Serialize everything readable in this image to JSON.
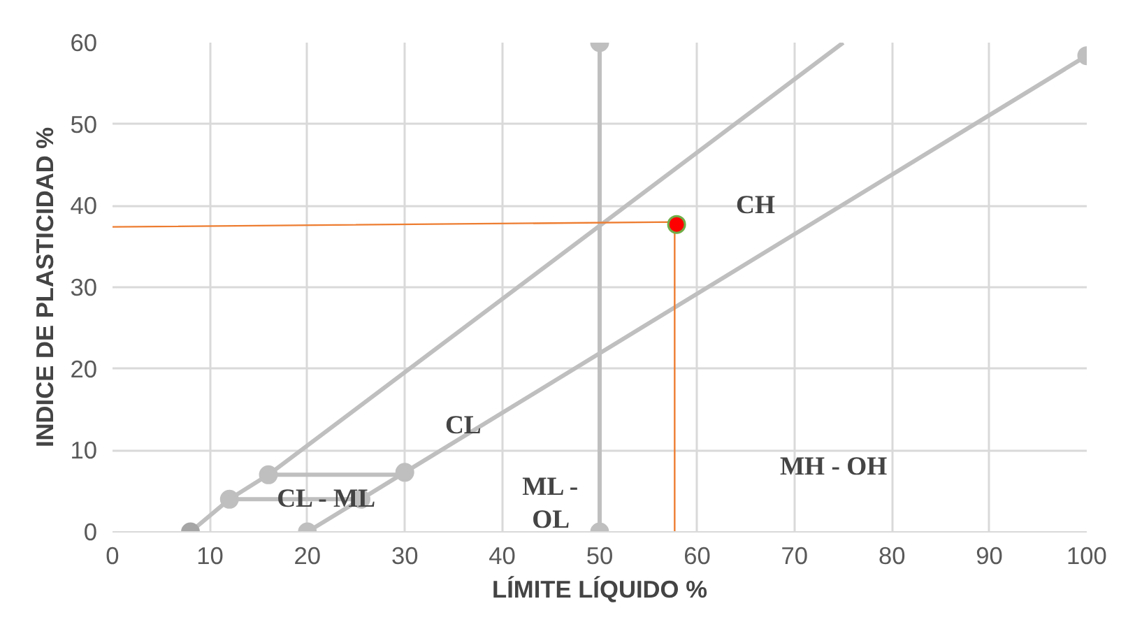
{
  "chart_data": {
    "type": "line",
    "xlabel": "LÍMITE LÍQUIDO %",
    "ylabel": "INDICE DE PLASTICIDAD %",
    "xlim": [
      0,
      100
    ],
    "ylim": [
      0,
      60
    ],
    "xticks": [
      0,
      10,
      20,
      30,
      40,
      50,
      60,
      70,
      80,
      90,
      100
    ],
    "yticks": [
      0,
      10,
      20,
      30,
      40,
      50,
      60
    ],
    "grid": true,
    "line_style": "solid",
    "series": [
      {
        "marker": "none",
        "color": "#bfbfbf",
        "x": [
          8,
          12,
          16,
          75
        ],
        "values": [
          0,
          4,
          7,
          60
        ]
      },
      {
        "marker": "none",
        "color": "#bfbfbf",
        "x": [
          20,
          25.5,
          30,
          100
        ],
        "values": [
          0,
          4,
          7.3,
          58.4
        ]
      },
      {
        "marker": "none",
        "color": "#bfbfbf",
        "x": [
          12,
          25.5
        ],
        "values": [
          4,
          4
        ]
      },
      {
        "marker": "none",
        "color": "#bfbfbf",
        "x": [
          16,
          30
        ],
        "values": [
          7,
          7
        ]
      },
      {
        "marker": "none",
        "color": "#bfbfbf",
        "x": [
          50,
          50
        ],
        "values": [
          0,
          60
        ]
      },
      {
        "type": "scatter",
        "marker": "circle",
        "color": "#bfbfbf",
        "x": [
          12,
          16,
          25.5,
          20,
          30,
          100,
          50,
          50
        ],
        "values": [
          4,
          7,
          4,
          0,
          7.3,
          58.4,
          0,
          60
        ]
      },
      {
        "type": "scatter",
        "marker": "circle",
        "color": "#a6a6a6",
        "x": [
          8
        ],
        "values": [
          0
        ]
      },
      {
        "marker": "none",
        "color": "#ed7d31",
        "x": [
          0,
          57.7,
          57.7
        ],
        "values": [
          37.4,
          38,
          0
        ]
      },
      {
        "type": "scatter",
        "marker": "circle",
        "color": "#ff0000",
        "x": [
          57.9
        ],
        "values": [
          37.7
        ]
      }
    ],
    "annotations": [
      "CH",
      "CL",
      "CL - ML",
      "ML -",
      "OL",
      "MH - OH"
    ]
  }
}
